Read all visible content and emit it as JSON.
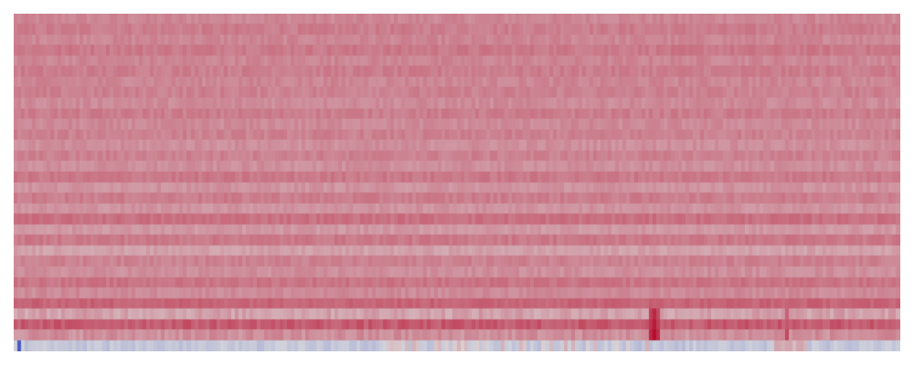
{
  "chart_data": {
    "type": "heatmap",
    "title": "",
    "xlabel": "",
    "ylabel": "",
    "colormap": "coolwarm",
    "color_low": "#3b4cc0",
    "color_mid": "#dddddd",
    "color_high": "#b40426",
    "value_range": [
      0,
      1
    ],
    "rows": 32,
    "columns": 240,
    "row_base_values": [
      0.7,
      0.72,
      0.7,
      0.73,
      0.7,
      0.72,
      0.7,
      0.71,
      0.69,
      0.72,
      0.69,
      0.71,
      0.68,
      0.71,
      0.68,
      0.73,
      0.67,
      0.72,
      0.67,
      0.75,
      0.66,
      0.73,
      0.64,
      0.71,
      0.68,
      0.74,
      0.69,
      0.78,
      0.64,
      0.8,
      0.68,
      0.42
    ],
    "column_peaks": [
      {
        "column": 1,
        "last_row_value": 0.05
      },
      {
        "column": 172,
        "value": 0.92
      },
      {
        "column": 173,
        "value": 0.98
      },
      {
        "column": 174,
        "value": 0.9
      },
      {
        "column": 209,
        "value": 0.84
      }
    ]
  }
}
